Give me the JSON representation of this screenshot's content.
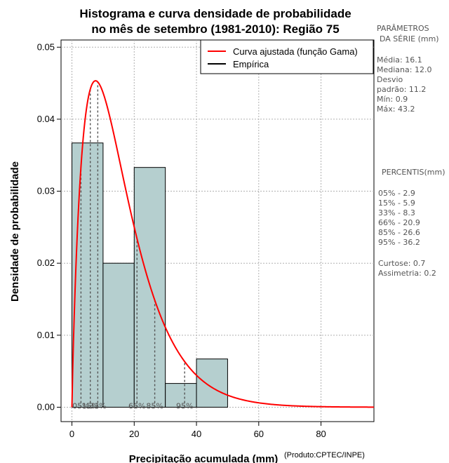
{
  "chart_data": {
    "type": "bar",
    "title_line1": "Histograma e curva densidade de probabilidade",
    "title_line2": "no mês de setembro (1981-2010): Região 75",
    "xlabel": "Precipitação acumulada (mm)",
    "ylabel": "Densidade de probabilidade",
    "credit": "(Produto:CPTEC/INPE)",
    "xlim": [
      -3.5,
      97
    ],
    "ylim": [
      -0.002,
      0.051
    ],
    "x_ticks": [
      0,
      20,
      40,
      60,
      80
    ],
    "y_ticks": [
      0.0,
      0.01,
      0.02,
      0.03,
      0.04,
      0.05
    ],
    "y_tick_labels": [
      "0.00",
      "0.01",
      "0.02",
      "0.03",
      "0.04",
      "0.05"
    ],
    "grid": true,
    "bins": [
      {
        "from": 0,
        "to": 10,
        "density": 0.0367
      },
      {
        "from": 10,
        "to": 20,
        "density": 0.02
      },
      {
        "from": 20,
        "to": 30,
        "density": 0.0333
      },
      {
        "from": 30,
        "to": 40,
        "density": 0.0033
      },
      {
        "from": 40,
        "to": 50,
        "density": 0.0067
      }
    ],
    "bar_color": "#b5cfcf",
    "gamma_fit": {
      "shape": 1.89,
      "scale": 8.52,
      "color": "#ff0000",
      "x_max": 97
    },
    "percentile_lines": [
      2.9,
      5.9,
      8.3,
      20.9,
      26.6,
      36.2
    ],
    "percentile_labels": [
      {
        "x": 2.9,
        "text": "05%"
      },
      {
        "x": 5.9,
        "text": "15%"
      },
      {
        "x": 8.3,
        "text": "33%"
      },
      {
        "x": 20.9,
        "text": "66%"
      },
      {
        "x": 26.6,
        "text": "85%"
      },
      {
        "x": 36.2,
        "text": "95%"
      }
    ],
    "legend": [
      {
        "label": "Curva ajustada (função Gama)",
        "color": "#ff0000"
      },
      {
        "label": "Empírica",
        "color": "#000000"
      }
    ],
    "legend_position": "top-right"
  },
  "side_panel": {
    "params_title_1": "PARÂMETROS",
    "params_title_2": "DA SÉRIE (mm)",
    "media": "Média:  16.1",
    "mediana": "Mediana:  12.0",
    "desvio_1": "Desvio",
    "desvio_2": "padrão:  11.2",
    "min": "Mín:  0.9",
    "max": "Máx:  43.2",
    "percentis_title": "PERCENTIS(mm)",
    "p05": "05% -  2.9",
    "p15": "15% -  5.9",
    "p33": "33% -  8.3",
    "p66": "66% -  20.9",
    "p85": "85% -  26.6",
    "p95": "95% -  36.2",
    "curtose": "Curtose:  0.7",
    "assimetria": "Assimetria:  0.2"
  }
}
